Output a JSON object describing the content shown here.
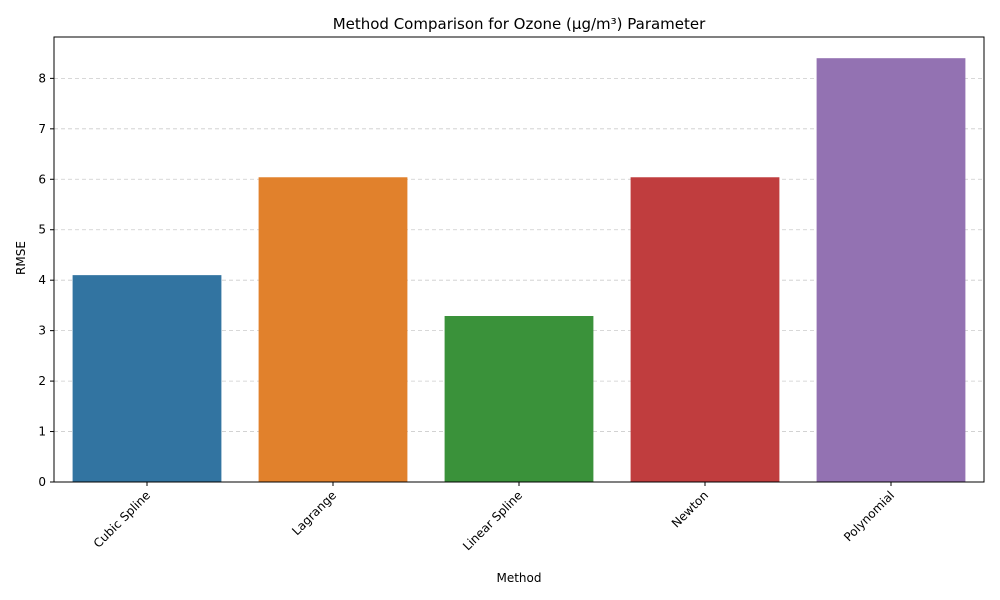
{
  "chart_data": {
    "type": "bar",
    "title": "Method Comparison for Ozone (µg/m³) Parameter",
    "xlabel": "Method",
    "ylabel": "RMSE",
    "categories": [
      "Cubic Spline",
      "Lagrange",
      "Linear Spline",
      "Newton",
      "Polynomial"
    ],
    "values": [
      4.1,
      6.04,
      3.29,
      6.04,
      8.4
    ],
    "colors": [
      "#3274a1",
      "#e1812c",
      "#3a923a",
      "#c03d3e",
      "#9372b2"
    ],
    "ylim": [
      0,
      8.82
    ],
    "yticks": [
      0,
      1,
      2,
      3,
      4,
      5,
      6,
      7,
      8
    ],
    "grid": true,
    "grid_axis": "y",
    "grid_style": "dashed",
    "xtick_rotation": 45,
    "legend": "none"
  }
}
